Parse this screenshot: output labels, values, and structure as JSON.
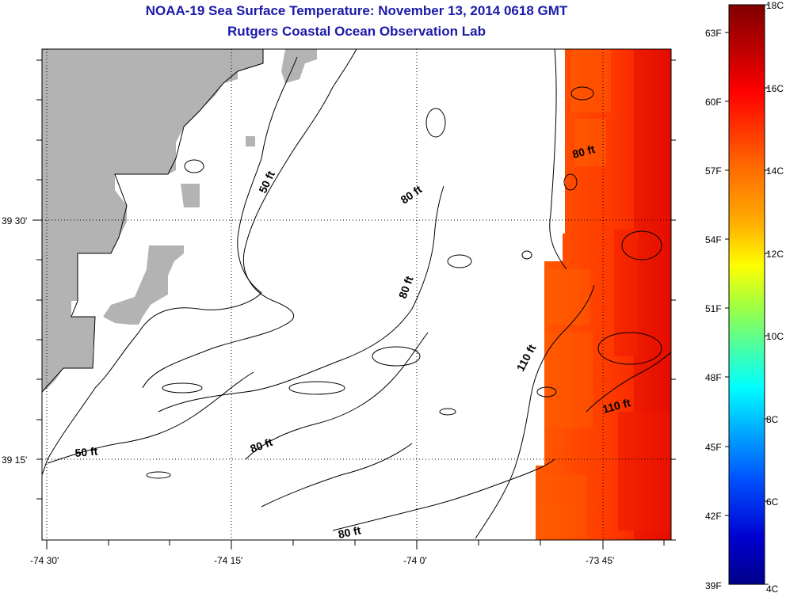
{
  "title": "NOAA-19 Sea Surface Temperature:  November 13, 2014 0618 GMT",
  "subtitle": "Rutgers Coastal Ocean Observation Lab",
  "axes": {
    "x_ticks": [
      "-74 30'",
      "-74 15'",
      "-74 0'",
      "-73 45'"
    ],
    "y_ticks": [
      "39 30'",
      "39 15'"
    ]
  },
  "contours": [
    {
      "label": "50 ft"
    },
    {
      "label": "50 ft"
    },
    {
      "label": "80 ft"
    },
    {
      "label": "80 ft"
    },
    {
      "label": "80 ft"
    },
    {
      "label": "80 ft"
    },
    {
      "label": "80 ft"
    },
    {
      "label": "110 ft"
    },
    {
      "label": "110 ft"
    }
  ],
  "colorbar": {
    "celsius": [
      "18C",
      "16C",
      "14C",
      "12C",
      "10C",
      "8C",
      "6C",
      "4C"
    ],
    "fahrenheit": [
      "63F",
      "60F",
      "57F",
      "54F",
      "51F",
      "48F",
      "45F",
      "42F",
      "39F"
    ],
    "range_c": [
      4,
      18
    ]
  },
  "colors": {
    "title": "#1a1aa8",
    "land": "#b3b3b3",
    "warm": "#ff3a00"
  }
}
